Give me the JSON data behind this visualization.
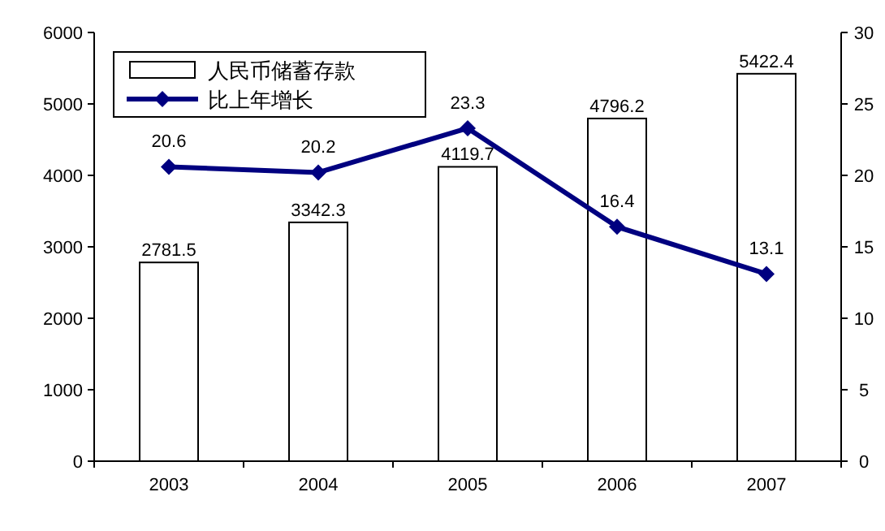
{
  "chart_data": {
    "type": "bar",
    "categories": [
      "2003",
      "2004",
      "2005",
      "2006",
      "2007"
    ],
    "series": [
      {
        "name": "人民币储蓄存款",
        "color": "#ffffff",
        "values": [
          2781.5,
          3342.3,
          4119.7,
          4796.2,
          5422.4
        ]
      },
      {
        "name": "比上年增长",
        "type": "line",
        "axis": "y2",
        "color": "#000080",
        "values": [
          20.6,
          20.2,
          23.3,
          16.4,
          13.1
        ]
      }
    ],
    "ylim": [
      0,
      6000
    ],
    "yticks": [
      0,
      1000,
      2000,
      3000,
      4000,
      5000,
      6000
    ],
    "y2lim": [
      0,
      30
    ],
    "y2ticks": [
      0,
      5,
      10,
      15,
      20,
      25,
      30
    ],
    "data_labels": true,
    "legend": "top left",
    "marker": "diamond",
    "grid": false
  }
}
